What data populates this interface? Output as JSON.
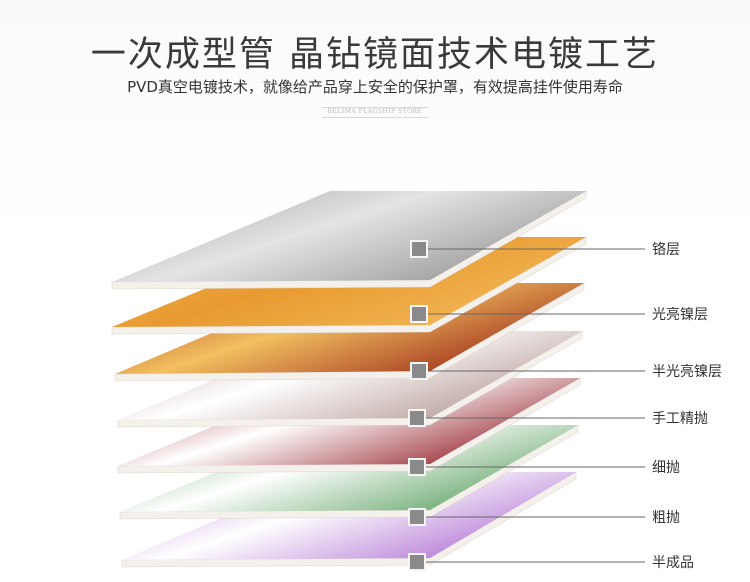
{
  "title": "一次成型管 晶钻镜面技术电镀工艺",
  "subtitle": "PVD真空电镀技术，就像给产品穿上安全的保护罩，有效提高挂件使用寿命",
  "watermark": "BELIMA FLAGSHIP STORE",
  "layers": [
    {
      "label": "铬层",
      "color_a": "#9c9c9c",
      "color_b": "#e4e4e4"
    },
    {
      "label": "光亮镍层",
      "color_a": "#f2b655",
      "color_b": "#e89a30"
    },
    {
      "label": "半光亮镍层",
      "color_a": "#a0321d",
      "color_b": "#f3bf60"
    },
    {
      "label": "手工精抛",
      "color_a": "#b89e9a",
      "color_b": "#ffffff"
    },
    {
      "label": "细抛",
      "color_a": "#9a2e36",
      "color_b": "#ffffff"
    },
    {
      "label": "粗抛",
      "color_a": "#67a86c",
      "color_b": "#ffffff"
    },
    {
      "label": "半成品",
      "color_a": "#b57ad6",
      "color_b": "#ffffff"
    }
  ]
}
